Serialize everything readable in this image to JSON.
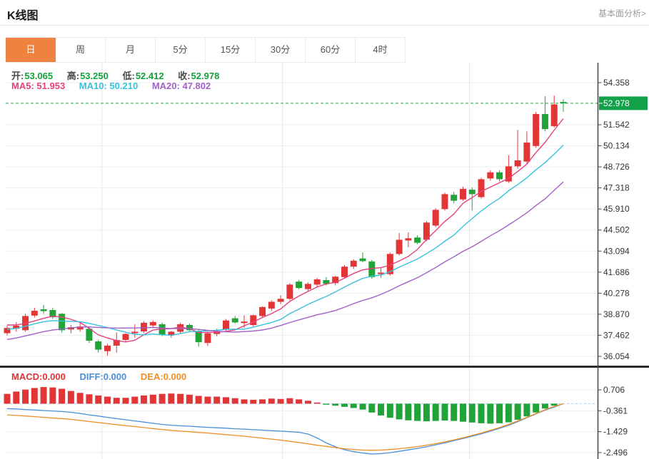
{
  "header": {
    "title": "K线图",
    "link": "基本面分析>"
  },
  "tabs": {
    "active_index": 0,
    "items": [
      {
        "label": "日"
      },
      {
        "label": "周"
      },
      {
        "label": "月"
      },
      {
        "label": "5分"
      },
      {
        "label": "15分"
      },
      {
        "label": "30分"
      },
      {
        "label": "60分"
      },
      {
        "label": "4时"
      }
    ]
  },
  "ohlc_bar": {
    "open_label": "开:",
    "open": "53.065",
    "high_label": "高:",
    "high": "53.250",
    "low_label": "低:",
    "low": "52.412",
    "close_label": "收:",
    "close": "52.978"
  },
  "ma_bar": {
    "ma5_label": "MA5:",
    "ma5": "51.953",
    "ma10_label": "MA10:",
    "ma10": "50.210",
    "ma20_label": "MA20:",
    "ma20": "47.802"
  },
  "macd_bar": {
    "macd_label": "MACD:",
    "macd": "0.000",
    "diff_label": "DIFF:",
    "diff": "0.000",
    "dea_label": "DEA:",
    "dea": "0.000"
  },
  "price_badge": {
    "value": "52.978"
  },
  "colors": {
    "tab_active": "#f0823f",
    "up": "#e23636",
    "down": "#21a338",
    "ma5": "#e6407f",
    "ma10": "#36c2e0",
    "ma20": "#a161c9",
    "macd_label": "#e03333",
    "diff": "#4a90d9",
    "dea": "#ee8f27",
    "price_line": "#17a546",
    "badge_bg": "#12a149",
    "grid": "#ededed",
    "vgrid": "#e7e7e7",
    "axis": "#444444",
    "tick_text": "#333333",
    "zero_dash": "#aacdee",
    "separator": "#2b2b2b"
  },
  "chart_data": [
    {
      "type": "candlestick",
      "title": "K线图 日线 (daily K-line with MA5/MA10/MA20)",
      "y_ticks": [
        54.358,
        51.542,
        50.134,
        48.726,
        47.318,
        45.91,
        44.502,
        43.094,
        41.686,
        40.278,
        38.87,
        37.462,
        36.054
      ],
      "ylim": [
        35.48,
        55.69
      ],
      "price_line": 52.978,
      "x_gridline_indices": [
        10.4,
        30.2,
        50.7
      ],
      "ma_periods": [
        5,
        10,
        20
      ],
      "seed_closes": [
        36.0,
        36.1,
        36.0,
        36.2,
        36.3,
        36.5,
        36.4,
        36.6,
        36.8,
        37.0,
        37.2,
        37.4,
        37.3,
        37.5,
        37.7,
        37.9,
        38.1,
        38.2,
        38.3,
        38.2
      ],
      "ohlc": [
        [
          37.6,
          38.1,
          37.45,
          37.95
        ],
        [
          37.9,
          38.35,
          37.7,
          38.1
        ],
        [
          37.8,
          38.9,
          37.7,
          38.75
        ],
        [
          38.78,
          39.3,
          38.65,
          39.1
        ],
        [
          39.2,
          39.5,
          38.9,
          39.08
        ],
        [
          39.15,
          39.3,
          38.55,
          38.67
        ],
        [
          38.9,
          38.95,
          37.65,
          37.8
        ],
        [
          37.85,
          38.15,
          37.6,
          38.0
        ],
        [
          37.85,
          38.3,
          37.7,
          38.05
        ],
        [
          37.9,
          38.0,
          36.95,
          37.1
        ],
        [
          37.05,
          37.15,
          36.3,
          36.5
        ],
        [
          36.4,
          36.9,
          36.1,
          36.77
        ],
        [
          36.77,
          37.65,
          36.3,
          37.15
        ],
        [
          37.15,
          37.6,
          37.05,
          37.55
        ],
        [
          37.6,
          38.2,
          37.3,
          37.7
        ],
        [
          37.72,
          38.4,
          37.6,
          38.3
        ],
        [
          38.12,
          38.45,
          38.0,
          38.35
        ],
        [
          38.2,
          38.3,
          37.4,
          37.5
        ],
        [
          37.45,
          37.75,
          37.3,
          37.7
        ],
        [
          37.7,
          38.3,
          37.6,
          38.2
        ],
        [
          38.15,
          38.25,
          37.7,
          37.8
        ],
        [
          37.75,
          37.85,
          36.7,
          37.0
        ],
        [
          36.95,
          37.7,
          36.75,
          37.6
        ],
        [
          37.55,
          37.9,
          37.4,
          37.75
        ],
        [
          37.85,
          38.55,
          37.75,
          38.45
        ],
        [
          38.6,
          38.75,
          38.25,
          38.32
        ],
        [
          38.28,
          38.8,
          37.95,
          38.38
        ],
        [
          38.15,
          38.85,
          38.05,
          38.8
        ],
        [
          38.75,
          39.4,
          38.65,
          39.35
        ],
        [
          39.25,
          39.8,
          39.1,
          39.7
        ],
        [
          39.7,
          40.15,
          39.55,
          39.9
        ],
        [
          39.9,
          40.95,
          39.8,
          40.85
        ],
        [
          41.05,
          41.15,
          40.55,
          40.62
        ],
        [
          40.55,
          41.0,
          40.4,
          40.9
        ],
        [
          40.85,
          41.3,
          40.7,
          41.2
        ],
        [
          41.15,
          41.35,
          40.8,
          40.9
        ],
        [
          40.95,
          41.45,
          40.8,
          41.38
        ],
        [
          41.35,
          42.15,
          41.25,
          42.05
        ],
        [
          42.05,
          42.55,
          41.9,
          42.45
        ],
        [
          42.6,
          43.0,
          42.35,
          42.42
        ],
        [
          42.4,
          42.5,
          41.25,
          41.35
        ],
        [
          41.55,
          41.95,
          41.3,
          41.65
        ],
        [
          41.55,
          43.0,
          41.45,
          42.9
        ],
        [
          42.9,
          44.3,
          42.8,
          43.85
        ],
        [
          43.8,
          44.35,
          43.35,
          43.95
        ],
        [
          44.0,
          44.15,
          43.55,
          43.65
        ],
        [
          43.85,
          45.1,
          43.75,
          45.0
        ],
        [
          44.8,
          45.95,
          44.7,
          45.85
        ],
        [
          45.9,
          47.0,
          45.8,
          46.9
        ],
        [
          46.86,
          47.05,
          46.3,
          46.46
        ],
        [
          46.55,
          47.4,
          46.45,
          47.25
        ],
        [
          47.2,
          47.35,
          45.8,
          46.9
        ],
        [
          46.7,
          48.0,
          46.6,
          47.9
        ],
        [
          47.95,
          48.5,
          47.8,
          48.36
        ],
        [
          48.36,
          48.5,
          47.75,
          47.9
        ],
        [
          47.75,
          49.5,
          47.65,
          48.76
        ],
        [
          48.76,
          51.2,
          48.6,
          49.16
        ],
        [
          49.08,
          51.1,
          48.95,
          50.35
        ],
        [
          50.12,
          52.4,
          50.0,
          52.26
        ],
        [
          52.26,
          53.45,
          51.1,
          51.25
        ],
        [
          51.45,
          53.5,
          51.35,
          52.9
        ],
        [
          53.065,
          53.25,
          52.412,
          52.978
        ]
      ]
    },
    {
      "type": "bar",
      "title": "MACD (12,26,9)",
      "y_ticks": [
        0.706,
        -0.361,
        -1.429,
        -2.496
      ],
      "ylim": [
        -2.824,
        1.834
      ],
      "hist": [
        0.5,
        0.62,
        0.72,
        0.8,
        0.85,
        0.83,
        0.76,
        0.65,
        0.55,
        0.48,
        0.42,
        0.36,
        0.3,
        0.3,
        0.36,
        0.42,
        0.46,
        0.5,
        0.52,
        0.5,
        0.46,
        0.4,
        0.36,
        0.36,
        0.33,
        0.28,
        0.22,
        0.2,
        0.22,
        0.26,
        0.24,
        0.28,
        0.22,
        0.15,
        0.06,
        -0.05,
        -0.1,
        -0.16,
        -0.22,
        -0.3,
        -0.45,
        -0.6,
        -0.72,
        -0.8,
        -0.85,
        -0.88,
        -0.9,
        -0.88,
        -0.86,
        -0.88,
        -0.92,
        -0.96,
        -1.0,
        -1.02,
        -1.0,
        -0.95,
        -0.82,
        -0.65,
        -0.45,
        -0.25,
        -0.1,
        0.0
      ],
      "diff": [
        -0.25,
        -0.27,
        -0.3,
        -0.32,
        -0.35,
        -0.37,
        -0.4,
        -0.44,
        -0.5,
        -0.57,
        -0.63,
        -0.7,
        -0.76,
        -0.82,
        -0.88,
        -0.94,
        -1.0,
        -1.06,
        -1.1,
        -1.13,
        -1.15,
        -1.18,
        -1.21,
        -1.23,
        -1.25,
        -1.28,
        -1.3,
        -1.33,
        -1.35,
        -1.38,
        -1.4,
        -1.43,
        -1.46,
        -1.55,
        -1.75,
        -2.0,
        -2.2,
        -2.35,
        -2.45,
        -2.52,
        -2.57,
        -2.55,
        -2.5,
        -2.43,
        -2.36,
        -2.28,
        -2.2,
        -2.1,
        -2.0,
        -1.89,
        -1.78,
        -1.66,
        -1.54,
        -1.4,
        -1.26,
        -1.1,
        -0.92,
        -0.72,
        -0.52,
        -0.33,
        -0.17,
        0.0
      ],
      "dea": [
        -0.57,
        -0.6,
        -0.63,
        -0.66,
        -0.7,
        -0.73,
        -0.76,
        -0.8,
        -0.85,
        -0.91,
        -0.96,
        -1.02,
        -1.07,
        -1.12,
        -1.17,
        -1.22,
        -1.27,
        -1.32,
        -1.36,
        -1.4,
        -1.43,
        -1.47,
        -1.5,
        -1.54,
        -1.58,
        -1.62,
        -1.66,
        -1.71,
        -1.76,
        -1.81,
        -1.86,
        -1.92,
        -1.98,
        -2.05,
        -2.12,
        -2.18,
        -2.24,
        -2.3,
        -2.34,
        -2.37,
        -2.38,
        -2.37,
        -2.34,
        -2.3,
        -2.25,
        -2.19,
        -2.12,
        -2.04,
        -1.95,
        -1.85,
        -1.74,
        -1.62,
        -1.5,
        -1.36,
        -1.22,
        -1.06,
        -0.88,
        -0.7,
        -0.5,
        -0.31,
        -0.14,
        0.0
      ]
    }
  ]
}
